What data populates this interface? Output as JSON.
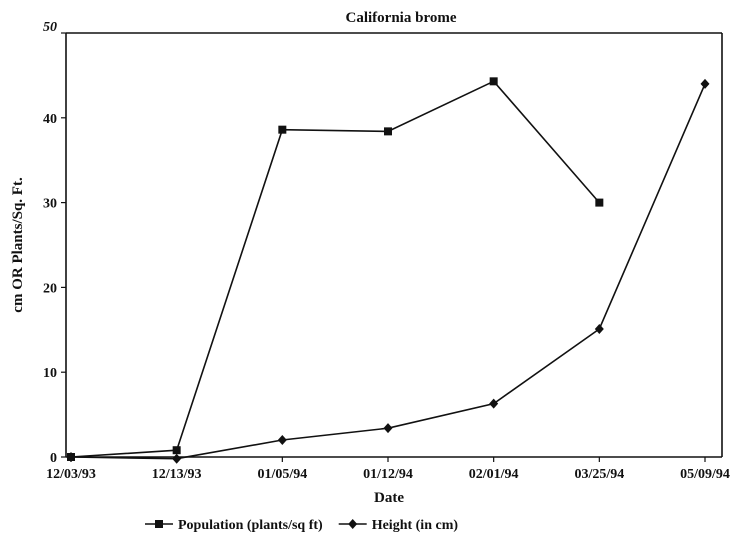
{
  "chart_data": {
    "type": "line",
    "title": "California brome",
    "xlabel": "Date",
    "ylabel": "cm OR Plants/Sq. Ft.",
    "categories": [
      "12/03/93",
      "12/13/93",
      "01/05/94",
      "01/12/94",
      "02/01/94",
      "03/25/94",
      "05/09/94"
    ],
    "ylim": [
      0,
      50
    ],
    "yticks": [
      "0",
      "10",
      "20",
      "30",
      "40",
      "50"
    ],
    "grid": false,
    "legend_position": "bottom",
    "series": [
      {
        "name": "Population (plants/sq ft)",
        "marker": "square",
        "values": [
          0,
          0.8,
          38.6,
          38.4,
          44.3,
          30,
          null
        ]
      },
      {
        "name": "Height (in cm)",
        "marker": "diamond",
        "values": [
          0,
          -0.2,
          2,
          3.4,
          6.3,
          15.1,
          44
        ]
      }
    ]
  }
}
